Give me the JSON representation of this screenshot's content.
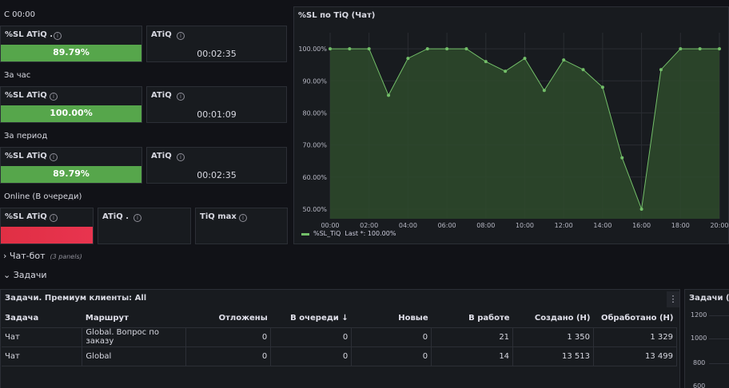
{
  "sections": {
    "since_midnight": "С 00:00",
    "per_hour": "За час",
    "per_period": "За период",
    "online": "Online (В очереди)"
  },
  "stats": [
    {
      "sl_title": "%SL ATiQ .",
      "sl_value": "89.79%",
      "atiq_title": "ATiQ",
      "atiq_value": "00:02:35"
    },
    {
      "sl_title": "%SL ATiQ",
      "sl_value": "100.00%",
      "atiq_title": "ATiQ",
      "atiq_value": "00:01:09"
    },
    {
      "sl_title": "%SL ATiQ",
      "sl_value": "89.79%",
      "atiq_title": "ATiQ",
      "atiq_value": "00:02:35"
    }
  ],
  "online_panels": {
    "sl_title": "%SL ATiQ",
    "atiq_title": "ATiQ .",
    "tiq_title": "TiQ max"
  },
  "chart_panel": {
    "title": "%SL по TiQ (Чат)",
    "legend_series": "%SL_TiQ",
    "legend_last": "Last *: 100.00%"
  },
  "chart_data": {
    "type": "area",
    "x": [
      "00:00",
      "01:00",
      "02:00",
      "03:00",
      "04:00",
      "05:00",
      "06:00",
      "07:00",
      "08:00",
      "09:00",
      "10:00",
      "11:00",
      "12:00",
      "13:00",
      "14:00",
      "15:00",
      "16:00",
      "17:00",
      "18:00",
      "19:00",
      "20:00"
    ],
    "x_ticks": [
      "00:00",
      "02:00",
      "04:00",
      "06:00",
      "08:00",
      "10:00",
      "12:00",
      "14:00",
      "16:00",
      "18:00",
      "20:00"
    ],
    "y_ticks": [
      "100.00%",
      "90.00%",
      "80.00%",
      "70.00%",
      "60.00%",
      "50.00%"
    ],
    "ylim": [
      47,
      105
    ],
    "series": [
      {
        "name": "%SL_TiQ",
        "values": [
          100,
          100,
          100,
          85.5,
          97,
          100,
          100,
          100,
          96,
          93,
          97,
          87,
          96.5,
          93.5,
          88,
          66,
          50,
          93.5,
          100,
          100,
          100
        ]
      }
    ],
    "grid": true,
    "legend": "bottom-left",
    "colors": {
      "line": "#73bf69",
      "fill": "#2e4a2c"
    }
  },
  "rows": {
    "chatbot": {
      "label": "Чат-бот",
      "sub": "(3 panels)"
    },
    "tasks": {
      "label": "Задачи"
    }
  },
  "tasks_table": {
    "title": "Задачи. Премиум клиенты: All",
    "menu_icon": "⋮",
    "columns": [
      "Задача",
      "Маршрут",
      "Отложены",
      "В очереди",
      "Новые",
      "В работе",
      "Создано (Н)",
      "Обработано (Н)"
    ],
    "sort_icon": "↓",
    "rows": [
      [
        "Чат",
        "Global. Вопрос по заказу",
        "0",
        "0",
        "0",
        "21",
        "1 350",
        "1 329"
      ],
      [
        "Чат",
        "Global",
        "0",
        "0",
        "0",
        "14",
        "13 513",
        "13 499"
      ]
    ]
  },
  "right_panel": {
    "title": "Задачи (Ча",
    "y_ticks": [
      "1200",
      "1000",
      "800",
      "600"
    ]
  },
  "colors": {
    "background": "#111217",
    "panel": "#181b1f",
    "green": "#56a64b",
    "red": "#e02f44"
  }
}
